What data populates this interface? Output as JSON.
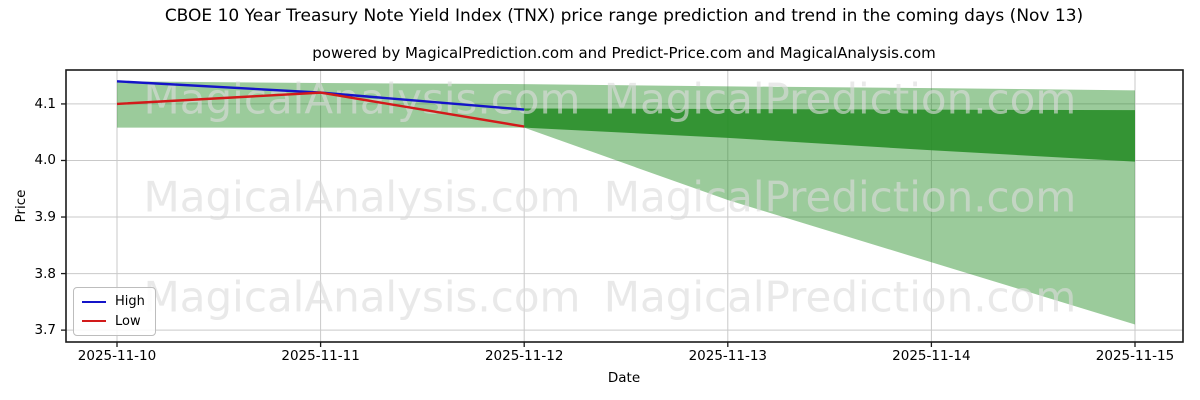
{
  "title": "CBOE 10 Year Treasury Note Yield Index (TNX) price range prediction and trend in the coming days (Nov 13)",
  "subtitle": "powered by MagicalPrediction.com and Predict-Price.com and MagicalAnalysis.com",
  "watermarks": {
    "left_text": "MagicalAnalysis.com",
    "right_text": "MagicalPrediction.com"
  },
  "chart_data": {
    "type": "line",
    "title": "CBOE 10 Year Treasury Note Yield Index (TNX) price range prediction and trend in the coming days (Nov 13)",
    "xlabel": "Date",
    "ylabel": "Price",
    "x": [
      "2025-11-10",
      "2025-11-11",
      "2025-11-12",
      "2025-11-13",
      "2025-11-14",
      "2025-11-15"
    ],
    "series": [
      {
        "name": "High",
        "color": "#1414c8",
        "values": [
          4.14,
          4.12,
          4.09,
          null,
          null,
          null
        ]
      },
      {
        "name": "Low",
        "color": "#d21a1a",
        "values": [
          4.1,
          4.12,
          4.06,
          null,
          null,
          null
        ]
      }
    ],
    "bands": [
      {
        "name": "predicted-range-wide",
        "color": "rgba(34,139,34,0.45)",
        "upper": [
          4.14,
          4.137,
          4.135,
          4.131,
          4.128,
          4.124
        ],
        "lower": [
          4.058,
          4.058,
          4.058,
          3.93,
          3.82,
          3.71
        ]
      },
      {
        "name": "predicted-range-core",
        "color": "rgba(34,139,34,0.85)",
        "upper": [
          null,
          null,
          4.092,
          4.091,
          4.09,
          4.089
        ],
        "lower": [
          null,
          null,
          4.058,
          4.04,
          4.018,
          3.998
        ]
      }
    ],
    "yticks": [
      "3.7",
      "3.8",
      "3.9",
      "4.0",
      "4.1"
    ],
    "ylim": [
      3.679,
      4.16
    ],
    "grid": true,
    "legend_position": "lower left"
  }
}
